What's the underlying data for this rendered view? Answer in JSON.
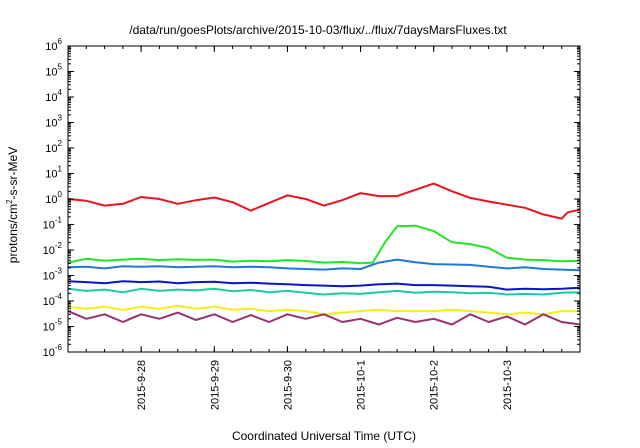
{
  "chart_data": {
    "type": "line",
    "title": "/data/run/goesPlots/archive/2015-10-03/flux/../flux/7daysMarsFluxes.txt",
    "xlabel": "Coordinated Universal Time (UTC)",
    "ylabel": {
      "base": "protons/cm",
      "sup": "2",
      "rest": "-s-sr-MeV"
    },
    "y_scale": "log",
    "ylim": [
      1e-06,
      1000000.0
    ],
    "y_ticks": [
      {
        "base": "10",
        "exp": "-6",
        "value": 1e-06
      },
      {
        "base": "10",
        "exp": "-5",
        "value": 1e-05
      },
      {
        "base": "10",
        "exp": "-4",
        "value": 0.0001
      },
      {
        "base": "10",
        "exp": "-3",
        "value": 0.001
      },
      {
        "base": "10",
        "exp": "-2",
        "value": 0.01
      },
      {
        "base": "10",
        "exp": "-1",
        "value": 0.1
      },
      {
        "base": "10",
        "exp": "0",
        "value": 1
      },
      {
        "base": "10",
        "exp": "1",
        "value": 10
      },
      {
        "base": "10",
        "exp": "2",
        "value": 100
      },
      {
        "base": "10",
        "exp": "3",
        "value": 1000
      },
      {
        "base": "10",
        "exp": "4",
        "value": 10000
      },
      {
        "base": "10",
        "exp": "5",
        "value": 100000
      },
      {
        "base": "10",
        "exp": "6",
        "value": 1000000
      }
    ],
    "xlim": [
      "2015-09-27 00:00",
      "2015-10-04 00:00"
    ],
    "x_ticks": [
      {
        "label": "2015-9-28",
        "value": "2015-09-28 00:00"
      },
      {
        "label": "2015-9-29",
        "value": "2015-09-29 00:00"
      },
      {
        "label": "2015-9-30",
        "value": "2015-09-30 00:00"
      },
      {
        "label": "2015-10-1",
        "value": "2015-10-01 00:00"
      },
      {
        "label": "2015-10-2",
        "value": "2015-10-02 00:00"
      },
      {
        "label": "2015-10-3",
        "value": "2015-10-03 00:00"
      }
    ],
    "grid": false,
    "legend": "none",
    "series": [
      {
        "color": "#e8141e",
        "x": [
          "2015-09-27 00:00",
          "2015-09-27 06:00",
          "2015-09-27 12:00",
          "2015-09-27 18:00",
          "2015-09-28 00:00",
          "2015-09-28 06:00",
          "2015-09-28 12:00",
          "2015-09-28 18:00",
          "2015-09-29 00:00",
          "2015-09-29 06:00",
          "2015-09-29 12:00",
          "2015-09-29 18:00",
          "2015-09-30 00:00",
          "2015-09-30 06:00",
          "2015-09-30 12:00",
          "2015-09-30 18:00",
          "2015-10-01 00:00",
          "2015-10-01 06:00",
          "2015-10-01 12:00",
          "2015-10-01 18:00",
          "2015-10-02 00:00",
          "2015-10-02 06:00",
          "2015-10-02 12:00",
          "2015-10-02 18:00",
          "2015-10-03 00:00",
          "2015-10-03 06:00",
          "2015-10-03 12:00",
          "2015-10-03 18:00",
          "2015-10-03 20:00",
          "2015-10-04 00:00"
        ],
        "y": [
          1.0,
          0.85,
          0.55,
          0.65,
          1.2,
          1.0,
          0.65,
          0.9,
          1.15,
          0.75,
          0.35,
          0.7,
          1.4,
          1.0,
          0.55,
          0.9,
          1.7,
          1.3,
          1.3,
          2.3,
          4.0,
          2.0,
          1.1,
          0.8,
          0.6,
          0.45,
          0.25,
          0.17,
          0.3,
          0.38
        ]
      },
      {
        "color": "#22e622",
        "x": [
          "2015-09-27 00:00",
          "2015-09-27 06:00",
          "2015-09-27 12:00",
          "2015-09-27 18:00",
          "2015-09-28 00:00",
          "2015-09-28 06:00",
          "2015-09-28 12:00",
          "2015-09-28 18:00",
          "2015-09-29 00:00",
          "2015-09-29 06:00",
          "2015-09-29 12:00",
          "2015-09-29 18:00",
          "2015-09-30 00:00",
          "2015-09-30 06:00",
          "2015-09-30 12:00",
          "2015-09-30 18:00",
          "2015-10-01 00:00",
          "2015-10-01 04:00",
          "2015-10-01 08:00",
          "2015-10-01 12:00",
          "2015-10-01 18:00",
          "2015-10-02 00:00",
          "2015-10-02 06:00",
          "2015-10-02 12:00",
          "2015-10-02 18:00",
          "2015-10-03 00:00",
          "2015-10-03 06:00",
          "2015-10-03 12:00",
          "2015-10-03 18:00",
          "2015-10-04 00:00"
        ],
        "y": [
          0.0032,
          0.0045,
          0.0038,
          0.0042,
          0.0045,
          0.004,
          0.0043,
          0.0041,
          0.0042,
          0.0035,
          0.0038,
          0.0036,
          0.004,
          0.0037,
          0.0032,
          0.0034,
          0.003,
          0.0032,
          0.02,
          0.085,
          0.09,
          0.055,
          0.02,
          0.017,
          0.012,
          0.005,
          0.0042,
          0.004,
          0.0036,
          0.0038
        ]
      },
      {
        "color": "#1e78dc",
        "x": [
          "2015-09-27 00:00",
          "2015-09-27 06:00",
          "2015-09-27 12:00",
          "2015-09-27 18:00",
          "2015-09-28 00:00",
          "2015-09-28 06:00",
          "2015-09-28 12:00",
          "2015-09-28 18:00",
          "2015-09-29 00:00",
          "2015-09-29 06:00",
          "2015-09-29 12:00",
          "2015-09-29 18:00",
          "2015-09-30 00:00",
          "2015-09-30 06:00",
          "2015-09-30 12:00",
          "2015-09-30 18:00",
          "2015-10-01 00:00",
          "2015-10-01 06:00",
          "2015-10-01 12:00",
          "2015-10-01 18:00",
          "2015-10-02 00:00",
          "2015-10-02 06:00",
          "2015-10-02 12:00",
          "2015-10-02 18:00",
          "2015-10-03 00:00",
          "2015-10-03 06:00",
          "2015-10-03 12:00",
          "2015-10-03 18:00",
          "2015-10-04 00:00"
        ],
        "y": [
          0.0021,
          0.0022,
          0.0019,
          0.0023,
          0.0022,
          0.0023,
          0.0021,
          0.0022,
          0.0023,
          0.0021,
          0.0022,
          0.0021,
          0.0019,
          0.0018,
          0.0017,
          0.0019,
          0.0018,
          0.0032,
          0.0042,
          0.0033,
          0.0028,
          0.0027,
          0.0026,
          0.0022,
          0.0019,
          0.0021,
          0.0018,
          0.0017,
          0.0016
        ]
      },
      {
        "color": "#0a14c8",
        "x": [
          "2015-09-27 00:00",
          "2015-09-27 06:00",
          "2015-09-27 12:00",
          "2015-09-27 18:00",
          "2015-09-28 00:00",
          "2015-09-28 06:00",
          "2015-09-28 12:00",
          "2015-09-28 18:00",
          "2015-09-29 00:00",
          "2015-09-29 06:00",
          "2015-09-29 12:00",
          "2015-09-29 18:00",
          "2015-09-30 00:00",
          "2015-09-30 06:00",
          "2015-09-30 12:00",
          "2015-09-30 18:00",
          "2015-10-01 00:00",
          "2015-10-01 06:00",
          "2015-10-01 12:00",
          "2015-10-01 18:00",
          "2015-10-02 00:00",
          "2015-10-02 06:00",
          "2015-10-02 12:00",
          "2015-10-02 18:00",
          "2015-10-03 00:00",
          "2015-10-03 06:00",
          "2015-10-03 12:00",
          "2015-10-03 18:00",
          "2015-10-04 00:00"
        ],
        "y": [
          0.0006,
          0.00055,
          0.0005,
          0.0006,
          0.00055,
          0.00058,
          0.0005,
          0.00055,
          0.00057,
          0.0005,
          0.00052,
          0.00048,
          0.00045,
          0.00042,
          0.0004,
          0.00038,
          0.0004,
          0.00045,
          0.00048,
          0.00042,
          0.00042,
          0.0004,
          0.00038,
          0.00036,
          0.00028,
          0.0003,
          0.00029,
          0.0003,
          0.00033
        ]
      },
      {
        "color": "#1ec8a0",
        "x": [
          "2015-09-27 00:00",
          "2015-09-27 06:00",
          "2015-09-27 12:00",
          "2015-09-27 18:00",
          "2015-09-28 00:00",
          "2015-09-28 06:00",
          "2015-09-28 12:00",
          "2015-09-28 18:00",
          "2015-09-29 00:00",
          "2015-09-29 06:00",
          "2015-09-29 12:00",
          "2015-09-29 18:00",
          "2015-09-30 00:00",
          "2015-09-30 06:00",
          "2015-09-30 12:00",
          "2015-09-30 18:00",
          "2015-10-01 00:00",
          "2015-10-01 06:00",
          "2015-10-01 12:00",
          "2015-10-01 18:00",
          "2015-10-02 00:00",
          "2015-10-02 06:00",
          "2015-10-02 12:00",
          "2015-10-02 18:00",
          "2015-10-03 00:00",
          "2015-10-03 06:00",
          "2015-10-03 12:00",
          "2015-10-03 18:00",
          "2015-10-04 00:00"
        ],
        "y": [
          0.0003,
          0.00025,
          0.00028,
          0.00022,
          0.0003,
          0.00025,
          0.00028,
          0.00026,
          0.0003,
          0.00024,
          0.00027,
          0.00022,
          0.00025,
          0.00021,
          0.00018,
          0.0002,
          0.00019,
          0.00022,
          0.00025,
          0.00021,
          0.00023,
          0.00022,
          0.0002,
          0.00021,
          0.00018,
          0.00019,
          0.00018,
          0.00021,
          0.00022
        ]
      },
      {
        "color": "#f0f014",
        "x": [
          "2015-09-27 00:00",
          "2015-09-27 06:00",
          "2015-09-27 12:00",
          "2015-09-27 18:00",
          "2015-09-28 00:00",
          "2015-09-28 06:00",
          "2015-09-28 12:00",
          "2015-09-28 18:00",
          "2015-09-29 00:00",
          "2015-09-29 06:00",
          "2015-09-29 12:00",
          "2015-09-29 18:00",
          "2015-09-30 00:00",
          "2015-09-30 06:00",
          "2015-09-30 12:00",
          "2015-09-30 18:00",
          "2015-10-01 00:00",
          "2015-10-01 06:00",
          "2015-10-01 12:00",
          "2015-10-01 18:00",
          "2015-10-02 00:00",
          "2015-10-02 06:00",
          "2015-10-02 12:00",
          "2015-10-02 18:00",
          "2015-10-03 00:00",
          "2015-10-03 06:00",
          "2015-10-03 12:00",
          "2015-10-03 18:00",
          "2015-10-04 00:00"
        ],
        "y": [
          6e-05,
          5e-05,
          6e-05,
          4.5e-05,
          6e-05,
          5e-05,
          6.5e-05,
          5e-05,
          6e-05,
          4.5e-05,
          5e-05,
          4e-05,
          4.5e-05,
          4e-05,
          3e-05,
          3.5e-05,
          4e-05,
          4.5e-05,
          4e-05,
          4e-05,
          4e-05,
          4.5e-05,
          4e-05,
          3.5e-05,
          3e-05,
          3.5e-05,
          3e-05,
          4e-05,
          4e-05
        ]
      },
      {
        "color": "#96326e",
        "x": [
          "2015-09-27 00:00",
          "2015-09-27 06:00",
          "2015-09-27 12:00",
          "2015-09-27 18:00",
          "2015-09-28 00:00",
          "2015-09-28 06:00",
          "2015-09-28 12:00",
          "2015-09-28 18:00",
          "2015-09-29 00:00",
          "2015-09-29 06:00",
          "2015-09-29 12:00",
          "2015-09-29 18:00",
          "2015-09-30 00:00",
          "2015-09-30 06:00",
          "2015-09-30 12:00",
          "2015-09-30 18:00",
          "2015-10-01 00:00",
          "2015-10-01 06:00",
          "2015-10-01 12:00",
          "2015-10-01 18:00",
          "2015-10-02 00:00",
          "2015-10-02 06:00",
          "2015-10-02 12:00",
          "2015-10-02 18:00",
          "2015-10-03 00:00",
          "2015-10-03 06:00",
          "2015-10-03 12:00",
          "2015-10-03 18:00",
          "2015-10-04 00:00"
        ],
        "y": [
          4e-05,
          2e-05,
          3e-05,
          1.5e-05,
          3e-05,
          2e-05,
          3.5e-05,
          1.8e-05,
          3e-05,
          1.5e-05,
          2.8e-05,
          1.5e-05,
          3e-05,
          2e-05,
          3e-05,
          1.5e-05,
          2e-05,
          1.2e-05,
          2.2e-05,
          1.5e-05,
          2e-05,
          1.2e-05,
          3e-05,
          1.5e-05,
          2.5e-05,
          1.2e-05,
          3e-05,
          1.5e-05,
          1.2e-05
        ]
      }
    ]
  }
}
